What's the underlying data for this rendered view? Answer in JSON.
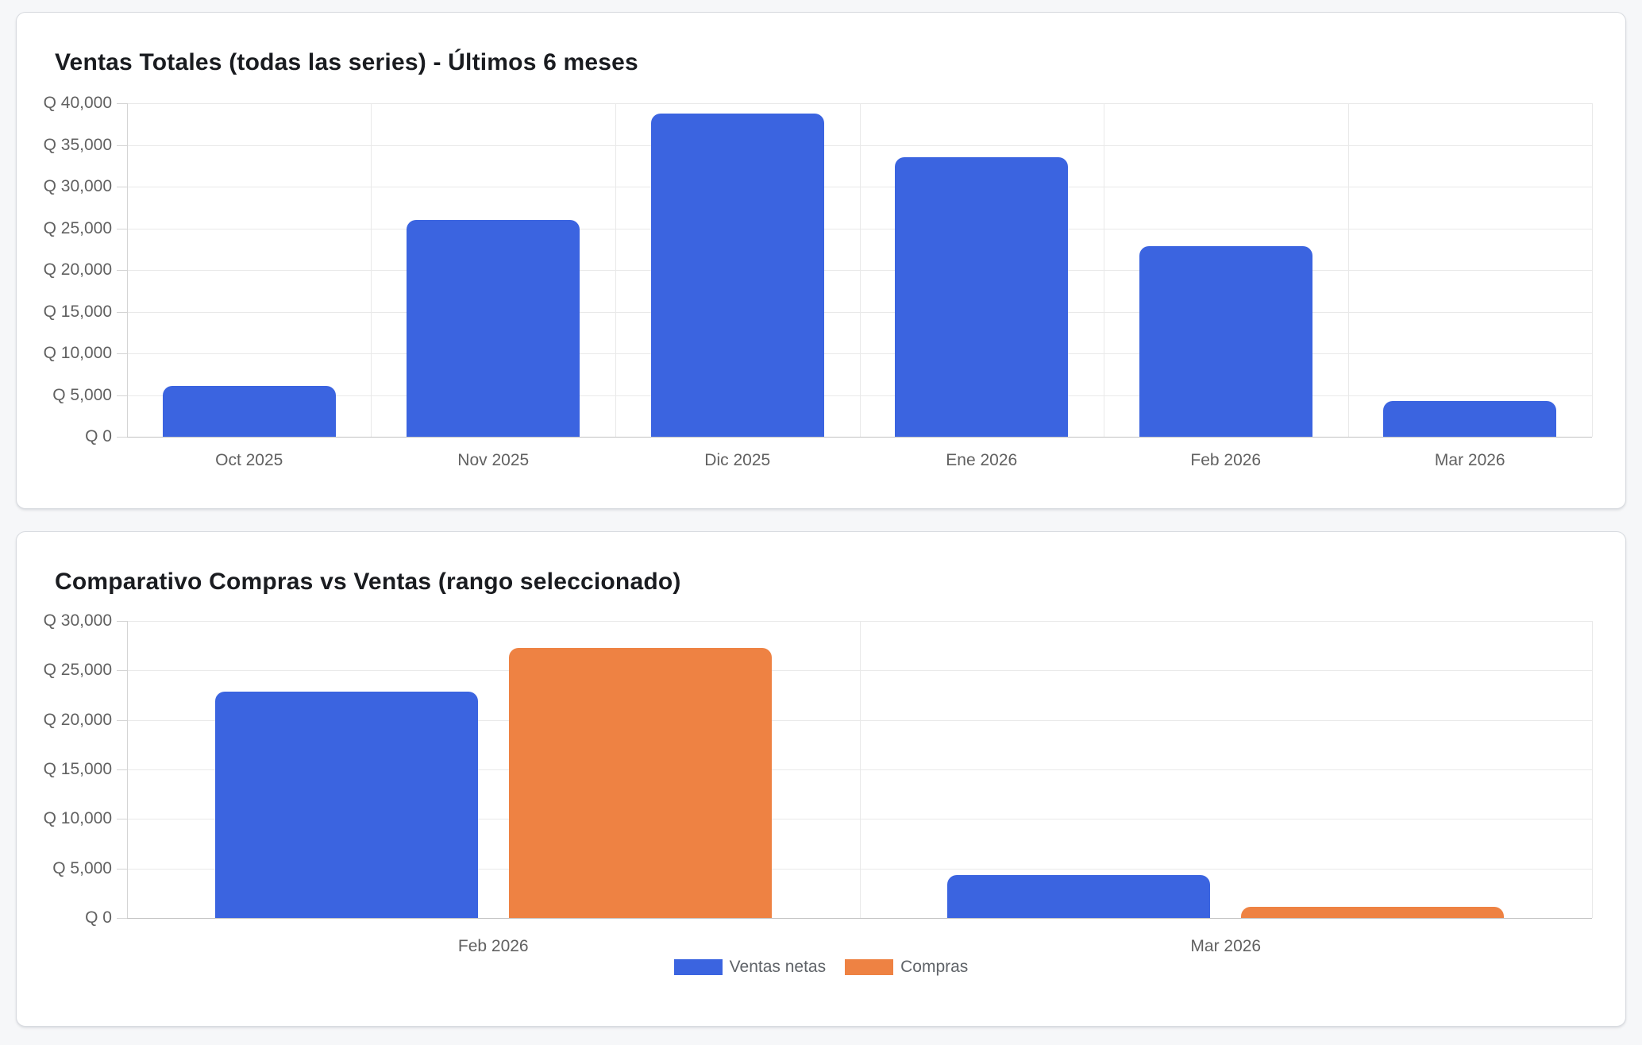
{
  "colors": {
    "page_bg": "#f6f7f9",
    "card_bg": "#ffffff",
    "card_border": "#d8dbe0",
    "gridline": "#e9e9e9",
    "axis_line": "#d4d4d4",
    "baseline": "#c2c2c2",
    "tick_text": "#616161",
    "legend_text": "#5f6368",
    "title_text": "#1a1c20",
    "series_blue": "#3b64e0",
    "series_orange": "#ee8243"
  },
  "chart_data": [
    {
      "type": "bar",
      "title": "Ventas Totales (todas las series) - Últimos 6 meses",
      "categories": [
        "Oct 2025",
        "Nov 2025",
        "Dic 2025",
        "Ene 2026",
        "Feb 2026",
        "Mar 2026"
      ],
      "series": [
        {
          "name": "Ventas netas",
          "color": "#3b64e0",
          "values": [
            6100,
            26000,
            38800,
            33500,
            22900,
            4300
          ]
        }
      ],
      "xlabel": "",
      "ylabel": "",
      "y_tick_prefix": "Q ",
      "ylim": [
        0,
        40000
      ],
      "ytick_step": 5000,
      "ytick_labels": [
        "Q 0",
        "Q 5,000",
        "Q 10,000",
        "Q 15,000",
        "Q 20,000",
        "Q 25,000",
        "Q 30,000",
        "Q 35,000",
        "Q 40,000"
      ],
      "grid": true,
      "legend": false
    },
    {
      "type": "bar",
      "title": "Comparativo Compras vs Ventas (rango seleccionado)",
      "categories": [
        "Feb 2026",
        "Mar 2026"
      ],
      "series": [
        {
          "name": "Ventas netas",
          "color": "#3b64e0",
          "values": [
            22900,
            4300
          ]
        },
        {
          "name": "Compras",
          "color": "#ee8243",
          "values": [
            27300,
            1100
          ]
        }
      ],
      "xlabel": "",
      "ylabel": "",
      "y_tick_prefix": "Q ",
      "ylim": [
        0,
        30000
      ],
      "ytick_step": 5000,
      "ytick_labels": [
        "Q 0",
        "Q 5,000",
        "Q 10,000",
        "Q 15,000",
        "Q 20,000",
        "Q 25,000",
        "Q 30,000"
      ],
      "grid": true,
      "legend": true,
      "legend_position": "bottom",
      "legend_items": [
        "Ventas netas",
        "Compras"
      ]
    }
  ]
}
